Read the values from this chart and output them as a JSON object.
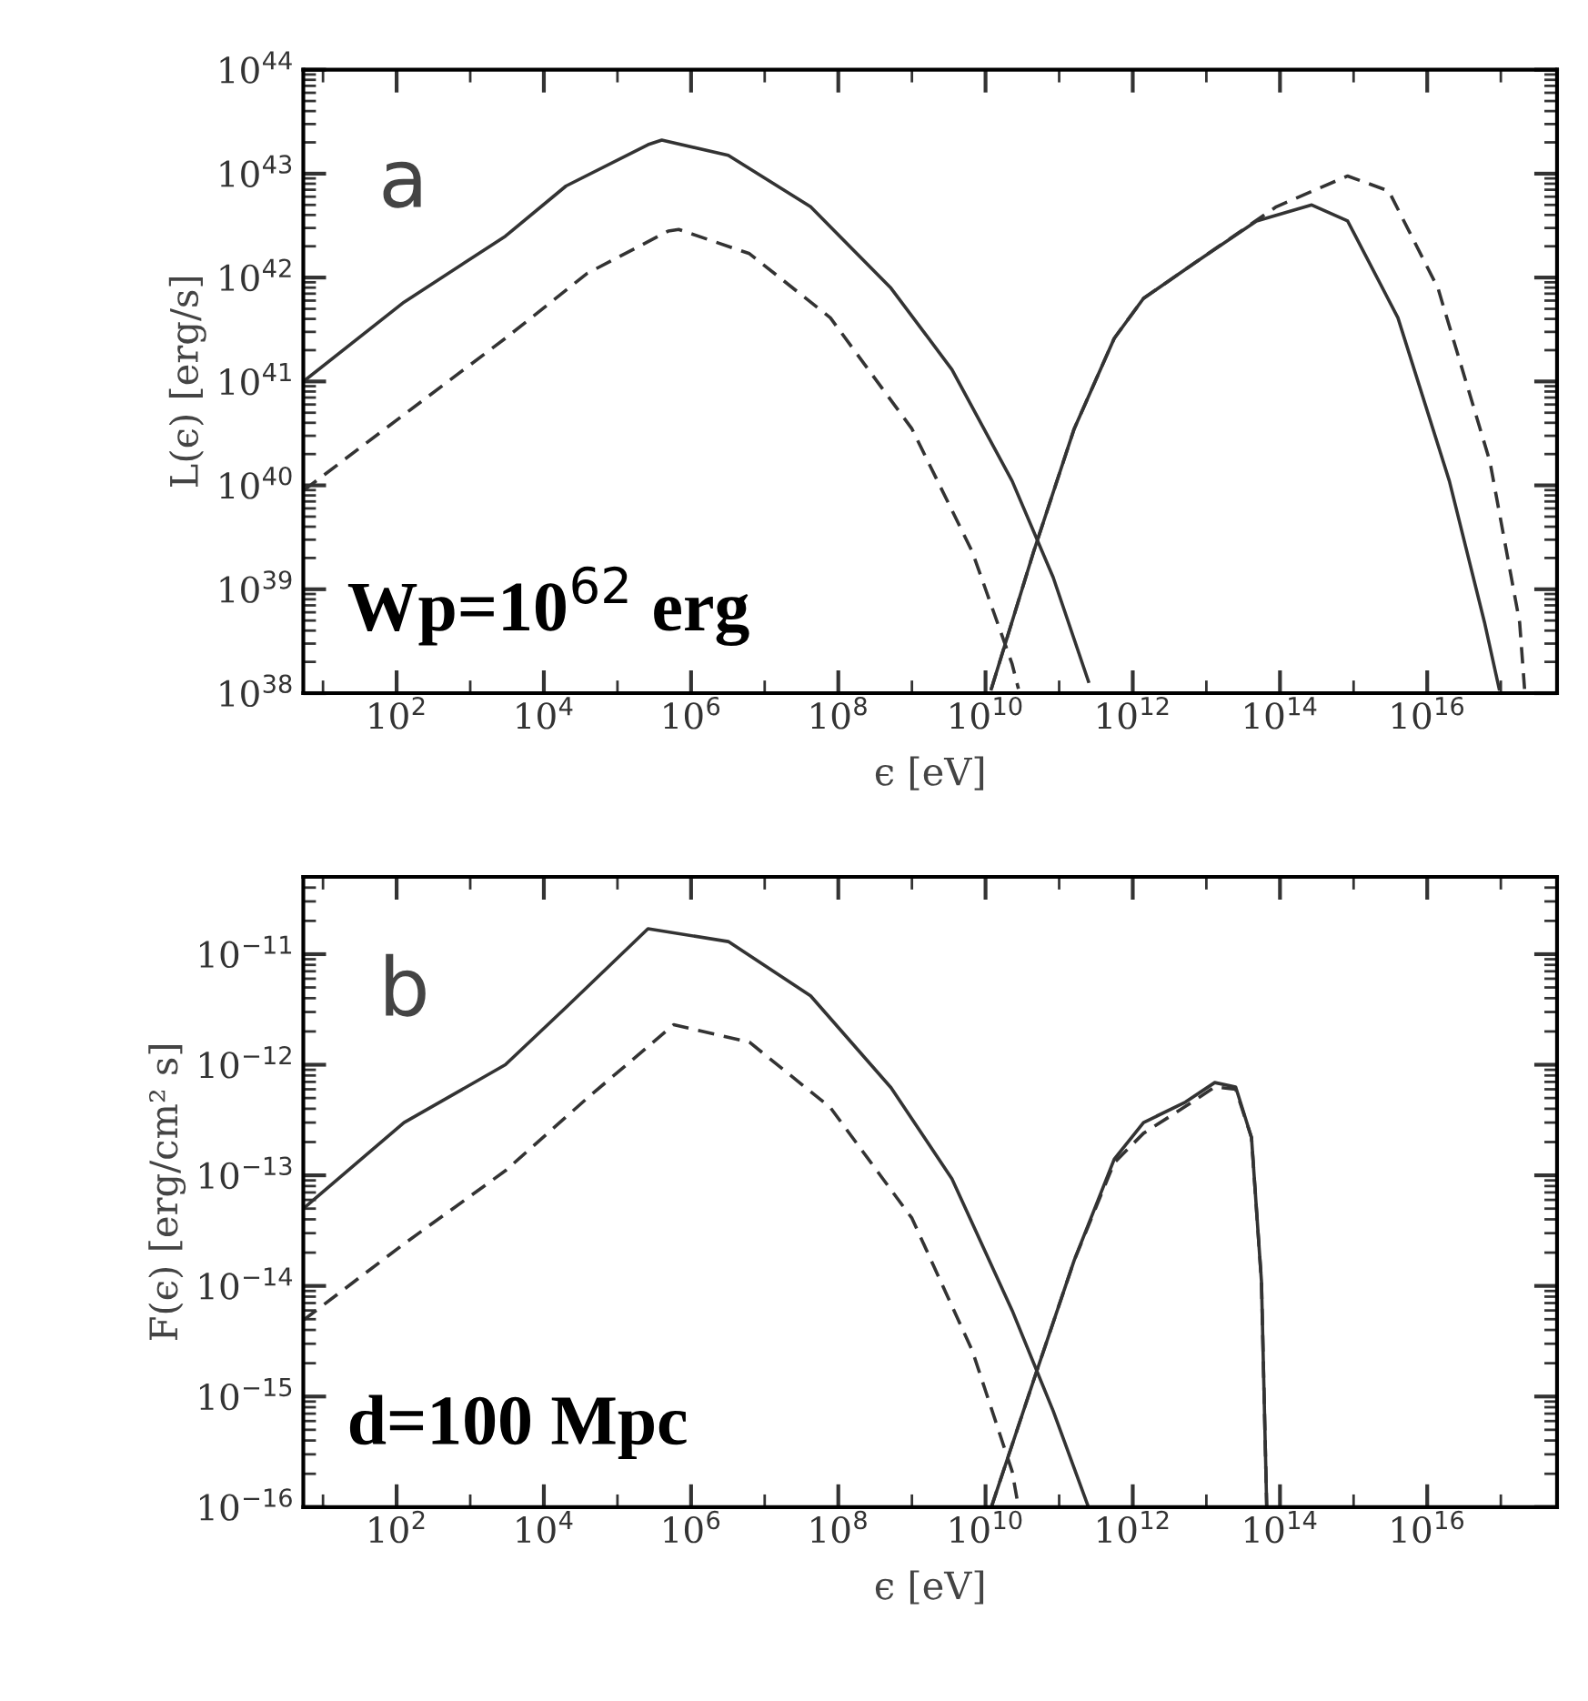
{
  "chart_data": [
    {
      "type": "line",
      "ylabel": "L(ϵ) [erg/s]",
      "xlabel": "ϵ [eV]",
      "log": "xy",
      "grid": false,
      "legend": false,
      "xlim": [
        5.4,
        5.8e+17
      ],
      "ylim": [
        1e+38,
        1e+44
      ],
      "xticks": [
        {
          "value": 100.0,
          "label": "10$^{2}$"
        },
        {
          "value": 10000.0,
          "label": "10$^{4}$"
        },
        {
          "value": 1000000.0,
          "label": "10$^{6}$"
        },
        {
          "value": 100000000.0,
          "label": "10$^{8}$"
        },
        {
          "value": 10000000000.0,
          "label": "10$^{10}$"
        },
        {
          "value": 1000000000000.0,
          "label": "10$^{12}$"
        },
        {
          "value": 100000000000000.0,
          "label": "10$^{14}$"
        },
        {
          "value": 1e+16,
          "label": "10$^{16}$"
        }
      ],
      "yticks": [
        {
          "value": 1e+38,
          "label": "10$^{38}$"
        },
        {
          "value": 1e+39,
          "label": "10$^{39}$"
        },
        {
          "value": 1e+40,
          "label": "10$^{40}$"
        },
        {
          "value": 1e+41,
          "label": "10$^{41}$"
        },
        {
          "value": 1e+42,
          "label": "10$^{42}$"
        },
        {
          "value": 1e+43,
          "label": "10$^{43}$"
        },
        {
          "value": 1e+44,
          "label": "10$^{44}$"
        }
      ],
      "annotations": [
        "a",
        "Wp=10$^{62}$ erg"
      ],
      "series": [
        {
          "color": "#333333",
          "line_style": "solid",
          "x": [
            5.4,
            126,
            3000.0,
            20000.0,
            260000.0,
            400000.0,
            3200000.0,
            42000000.0,
            520000000.0,
            3500000000.0,
            23000000000.0,
            83000000000.0,
            250000000000.0
          ],
          "values": [
            1e+41,
            5.8e+41,
            2.5e+42,
            7.6e+42,
            1.9e+43,
            2.1e+43,
            1.5e+43,
            4.8e+42,
            7.9e+41,
            1.3e+41,
            1.1e+40,
            1.3e+39,
            1.3e+38
          ]
        },
        {
          "color": "#333333",
          "line_style": "dashed",
          "x": [
            5.4,
            126,
            3000.0,
            39000.0,
            490000.0,
            680000.0,
            6200000.0,
            78000000.0,
            1000000000.0,
            6600000000.0,
            23000000000.0,
            28000000000.0
          ],
          "values": [
            8.9e+39,
            4.8e+40,
            2.6e+41,
            1.1e+42,
            2.8e+42,
            2.9e+42,
            1.7e+42,
            4.1e+41,
            3.5e+40,
            2.3e+39,
            1.9e+38,
            1.1e+38
          ]
        },
        {
          "color": "#333333",
          "line_style": "solid",
          "x": [
            12000000000.0,
            45000000000.0,
            160000000000.0,
            560000000000.0,
            1400000000000.0,
            7100000000000.0,
            48000000000000.0,
            270000000000000.0,
            830000000000000.0,
            4000000000000000.0,
            2e+16,
            6e+16,
            9.5e+16
          ],
          "values": [
            1.1e+38,
            2.3e+39,
            3.5e+40,
            2.6e+41,
            6.3e+41,
            1.4e+42,
            3.5e+42,
            5e+42,
            3.5e+42,
            4.1e+41,
            1.1e+40,
            4.8e+38,
            1.1e+38
          ]
        },
        {
          "color": "#333333",
          "line_style": "dashed",
          "x": [
            12000000000.0,
            45000000000.0,
            160000000000.0,
            560000000000.0,
            1400000000000.0,
            7100000000000.0,
            89000000000000.0,
            830000000000000.0,
            3000000000000000.0,
            1.4e+16,
            7.1e+16,
            1.8e+17,
            2.1e+17
          ],
          "values": [
            1.1e+38,
            2.3e+39,
            3.5e+40,
            2.6e+41,
            6.3e+41,
            1.4e+42,
            4.8e+42,
            9.5e+42,
            6.8e+42,
            7.9e+41,
            1.7e+40,
            4.8e+38,
            1.1e+38
          ]
        }
      ]
    },
    {
      "type": "line",
      "ylabel": "F(ϵ) [erg/cm² s]",
      "xlabel": "ϵ [eV]",
      "log": "xy",
      "grid": false,
      "legend": false,
      "xlim": [
        5.4,
        5.8e+17
      ],
      "ylim": [
        1e-16,
        5e-11
      ],
      "xticks": [
        {
          "value": 100.0,
          "label": "10$^{2}$"
        },
        {
          "value": 10000.0,
          "label": "10$^{4}$"
        },
        {
          "value": 1000000.0,
          "label": "10$^{6}$"
        },
        {
          "value": 100000000.0,
          "label": "10$^{8}$"
        },
        {
          "value": 10000000000.0,
          "label": "10$^{10}$"
        },
        {
          "value": 1000000000000.0,
          "label": "10$^{12}$"
        },
        {
          "value": 100000000000000.0,
          "label": "10$^{14}$"
        },
        {
          "value": 1e+16,
          "label": "10$^{16}$"
        }
      ],
      "yticks": [
        {
          "value": 1e-16,
          "label": "10$^{−16}$"
        },
        {
          "value": 1e-15,
          "label": "10$^{−15}$"
        },
        {
          "value": 1e-14,
          "label": "10$^{−14}$"
        },
        {
          "value": 1e-13,
          "label": "10$^{−13}$"
        },
        {
          "value": 1e-12,
          "label": "10$^{−12}$"
        },
        {
          "value": 1e-11,
          "label": "10$^{−11}$"
        }
      ],
      "annotations": [
        "b",
        "d=100 Mpc"
      ],
      "series": [
        {
          "color": "#333333",
          "line_style": "solid",
          "x": [
            5.4,
            126,
            3000.0,
            20000.0,
            260000.0,
            3200000.0,
            42000000.0,
            520000000.0,
            3500000000.0,
            23000000000.0,
            83000000000.0,
            250000000000.0
          ],
          "values": [
            5e-14,
            3e-13,
            1e-12,
            3.3e-12,
            1.7e-11,
            1.3e-11,
            4.2e-12,
            6.2e-13,
            9.3e-14,
            6e-15,
            7.4e-16,
            1e-16
          ]
        },
        {
          "color": "#333333",
          "line_style": "dashed",
          "x": [
            5.4,
            126,
            3000.0,
            39000.0,
            580000.0,
            6200000.0,
            78000000.0,
            1000000000.0,
            6600000000.0,
            23000000000.0,
            28000000000.0
          ],
          "values": [
            4.9e-15,
            2.4e-14,
            1.1e-13,
            5e-13,
            2.3e-12,
            1.6e-12,
            4.1e-13,
            4.1e-14,
            2.6e-15,
            2.1e-16,
            1e-16
          ]
        },
        {
          "color": "#333333",
          "line_style": "solid",
          "x": [
            12000000000.0,
            45000000000.0,
            160000000000.0,
            560000000000.0,
            1400000000000.0,
            5200000000000.0,
            13000000000000.0,
            25000000000000.0,
            41000000000000.0,
            56000000000000.0,
            66000000000000.0
          ],
          "values": [
            1e-16,
            1.4e-15,
            1.7e-14,
            1.4e-13,
            3e-13,
            4.6e-13,
            6.9e-13,
            6.3e-13,
            2.2e-13,
            1.1e-14,
            1e-16
          ]
        },
        {
          "color": "#333333",
          "line_style": "dashed",
          "x": [
            12000000000.0,
            45000000000.0,
            160000000000.0,
            560000000000.0,
            1400000000000.0,
            5200000000000.0,
            13000000000000.0,
            25000000000000.0,
            41000000000000.0,
            56000000000000.0,
            66000000000000.0
          ],
          "values": [
            1e-16,
            1.4e-15,
            1.7e-14,
            1.3e-13,
            2.4e-13,
            4.2e-13,
            6.3e-13,
            6e-13,
            2.2e-13,
            1.1e-14,
            1e-16
          ]
        }
      ]
    }
  ]
}
